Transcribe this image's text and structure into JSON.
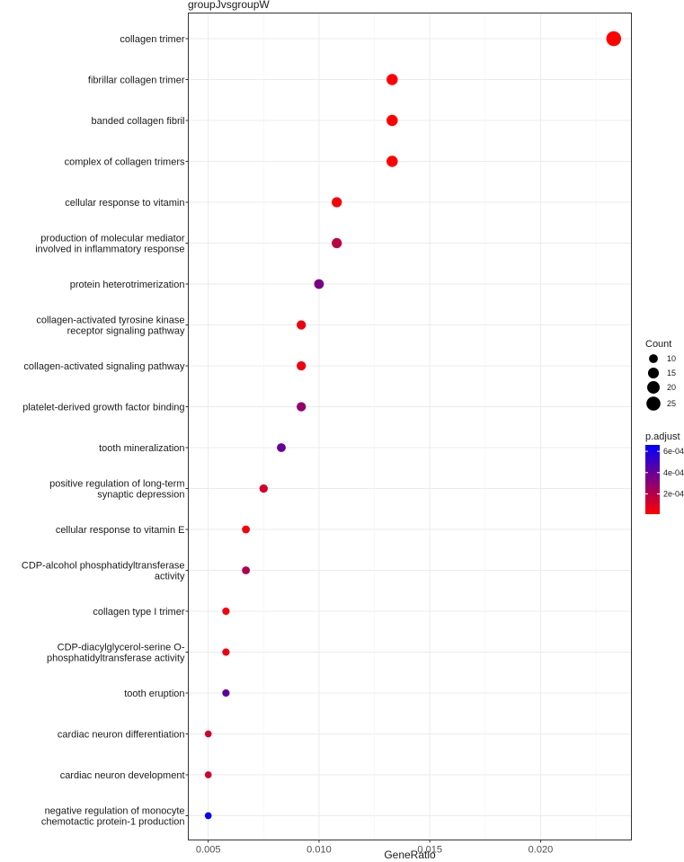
{
  "chart_data": {
    "type": "scatter",
    "title": "groupJvsgroupW",
    "xlabel": "GeneRatio",
    "ylabel": "",
    "xlim": [
      0.0041,
      0.0241
    ],
    "xticks": [
      0.005,
      0.01,
      0.015,
      0.02
    ],
    "xtick_labels": [
      "0.005",
      "0.010",
      "0.015",
      "0.020"
    ],
    "grid": true,
    "categories": [
      [
        "collagen trimer"
      ],
      [
        "fibrillar collagen trimer"
      ],
      [
        "banded collagen fibril"
      ],
      [
        "complex of collagen trimers"
      ],
      [
        "cellular response to vitamin"
      ],
      [
        "production of molecular mediator",
        "involved in inflammatory response"
      ],
      [
        "protein heterotrimerization"
      ],
      [
        "collagen-activated tyrosine kinase",
        "receptor signaling pathway"
      ],
      [
        "collagen-activated signaling pathway"
      ],
      [
        "platelet-derived growth factor binding"
      ],
      [
        "tooth mineralization"
      ],
      [
        "positive regulation of long-term",
        "synaptic depression"
      ],
      [
        "cellular response to vitamin E"
      ],
      [
        "CDP-alcohol phosphatidyltransferase",
        "activity"
      ],
      [
        "collagen type I trimer"
      ],
      [
        "CDP-diacylglycerol-serine O-",
        "phosphatidyltransferase activity"
      ],
      [
        "tooth eruption"
      ],
      [
        "cardiac neuron differentiation"
      ],
      [
        "cardiac neuron development"
      ],
      [
        "negative regulation of monocyte",
        "chemotactic protein-1 production"
      ]
    ],
    "gene_ratio": [
      0.0233,
      0.0133,
      0.0133,
      0.0133,
      0.0108,
      0.0108,
      0.01,
      0.0092,
      0.0092,
      0.0092,
      0.0083,
      0.0075,
      0.0067,
      0.0067,
      0.0058,
      0.0058,
      0.0058,
      0.005,
      0.005,
      0.005
    ],
    "count": [
      28,
      16,
      16,
      16,
      13,
      13,
      12,
      11,
      11,
      11,
      10,
      9,
      8,
      8,
      7,
      7,
      7,
      6,
      6,
      6
    ],
    "p_adjust": [
      1e-05,
      1e-05,
      1e-05,
      1e-05,
      3e-05,
      0.00018,
      0.00035,
      5e-05,
      5e-05,
      0.00028,
      0.0004,
      0.00012,
      3e-05,
      0.00022,
      3e-05,
      5e-05,
      0.00042,
      0.00013,
      0.00013,
      0.00065
    ],
    "legend_count": {
      "title": "Count",
      "values": [
        10,
        15,
        20,
        25
      ],
      "labels": [
        "10",
        "15",
        "20",
        "25"
      ]
    },
    "legend_padjust": {
      "title": "p.adjust",
      "range": [
        1e-05,
        0.00066
      ],
      "ticks": [
        0.0002,
        0.0004,
        0.0006
      ],
      "tick_labels": [
        "2e-04",
        "4e-04",
        "6e-04"
      ],
      "low_color": "#ff0000",
      "high_color": "#0000ff"
    },
    "panel_border": "#333333",
    "grid_color": "#ebebeb"
  }
}
